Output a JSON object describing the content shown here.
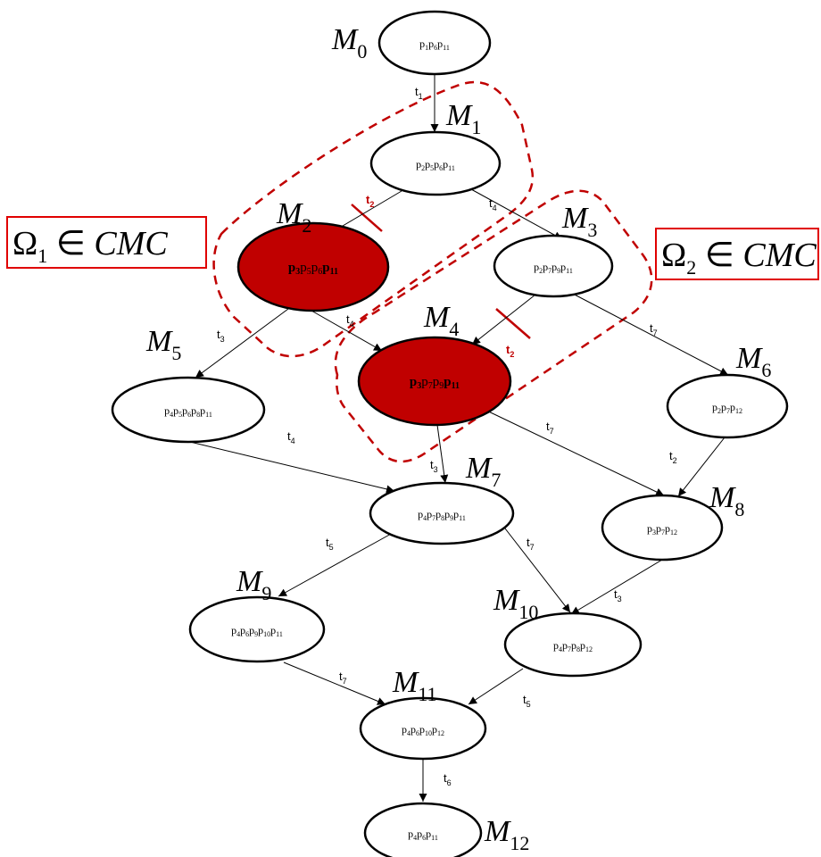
{
  "markings": [
    {
      "id": "M0",
      "label": "M",
      "sub": "0",
      "dead": false,
      "places": [
        [
          "p",
          "1"
        ],
        [
          "p",
          "6"
        ],
        [
          "p",
          "11"
        ]
      ]
    },
    {
      "id": "M1",
      "label": "M",
      "sub": "1",
      "dead": false,
      "places": [
        [
          "p",
          "2"
        ],
        [
          "p",
          "5"
        ],
        [
          "p",
          "6"
        ],
        [
          "p",
          "11"
        ]
      ]
    },
    {
      "id": "M2",
      "label": "M",
      "sub": "2",
      "dead": true,
      "places": [
        [
          "p",
          "3",
          true
        ],
        [
          "p",
          "5"
        ],
        [
          "p",
          "6"
        ],
        [
          "p",
          "11",
          true
        ]
      ]
    },
    {
      "id": "M3",
      "label": "M",
      "sub": "3",
      "dead": false,
      "places": [
        [
          "p",
          "2"
        ],
        [
          "p",
          "7"
        ],
        [
          "p",
          "9"
        ],
        [
          "p",
          "11"
        ]
      ]
    },
    {
      "id": "M4",
      "label": "M",
      "sub": "4",
      "dead": true,
      "places": [
        [
          "p",
          "3",
          true
        ],
        [
          "p",
          "7"
        ],
        [
          "p",
          "9"
        ],
        [
          "p",
          "11",
          true
        ]
      ]
    },
    {
      "id": "M5",
      "label": "M",
      "sub": "5",
      "dead": false,
      "places": [
        [
          "p",
          "4"
        ],
        [
          "p",
          "5"
        ],
        [
          "p",
          "6"
        ],
        [
          "p",
          "8"
        ],
        [
          "p",
          "11"
        ]
      ]
    },
    {
      "id": "M6",
      "label": "M",
      "sub": "6",
      "dead": false,
      "places": [
        [
          "p",
          "2"
        ],
        [
          "p",
          "7"
        ],
        [
          "p",
          "12"
        ]
      ]
    },
    {
      "id": "M7",
      "label": "M",
      "sub": "7",
      "dead": false,
      "places": [
        [
          "p",
          "4"
        ],
        [
          "p",
          "7"
        ],
        [
          "p",
          "8"
        ],
        [
          "p",
          "9"
        ],
        [
          "p",
          "11"
        ]
      ]
    },
    {
      "id": "M8",
      "label": "M",
      "sub": "8",
      "dead": false,
      "places": [
        [
          "p",
          "3"
        ],
        [
          "p",
          "7"
        ],
        [
          "p",
          "12"
        ]
      ]
    },
    {
      "id": "M9",
      "label": "M",
      "sub": "9",
      "dead": false,
      "places": [
        [
          "p",
          "4"
        ],
        [
          "p",
          "6"
        ],
        [
          "p",
          "9"
        ],
        [
          "p",
          "10"
        ],
        [
          "p",
          "11"
        ]
      ]
    },
    {
      "id": "M10",
      "label": "M",
      "sub": "10",
      "dead": false,
      "places": [
        [
          "p",
          "4"
        ],
        [
          "p",
          "7"
        ],
        [
          "p",
          "8"
        ],
        [
          "p",
          "12"
        ]
      ]
    },
    {
      "id": "M11",
      "label": "M",
      "sub": "11",
      "dead": false,
      "places": [
        [
          "p",
          "4"
        ],
        [
          "p",
          "6"
        ],
        [
          "p",
          "10"
        ],
        [
          "p",
          "12"
        ]
      ]
    },
    {
      "id": "M12",
      "label": "M",
      "sub": "12",
      "dead": false,
      "places": [
        [
          "p",
          "4"
        ],
        [
          "p",
          "6"
        ],
        [
          "p",
          "11"
        ]
      ]
    }
  ],
  "transitions": [
    {
      "from": "M0",
      "to": "M1",
      "label": "t",
      "sub": "1",
      "highlight": false
    },
    {
      "from": "M1",
      "to": "M2",
      "label": "t",
      "sub": "2",
      "highlight": true
    },
    {
      "from": "M1",
      "to": "M3",
      "label": "t",
      "sub": "4",
      "highlight": false
    },
    {
      "from": "M2",
      "to": "M5",
      "label": "t",
      "sub": "3",
      "highlight": false
    },
    {
      "from": "M2",
      "to": "M4",
      "label": "t",
      "sub": "4",
      "highlight": false
    },
    {
      "from": "M3",
      "to": "M4",
      "label": "t",
      "sub": "2",
      "highlight": true
    },
    {
      "from": "M3",
      "to": "M6",
      "label": "t",
      "sub": "7",
      "highlight": false
    },
    {
      "from": "M5",
      "to": "M7",
      "label": "t",
      "sub": "4",
      "highlight": false
    },
    {
      "from": "M4",
      "to": "M7",
      "label": "t",
      "sub": "3",
      "highlight": false
    },
    {
      "from": "M4",
      "to": "M8",
      "label": "t",
      "sub": "7",
      "highlight": false
    },
    {
      "from": "M6",
      "to": "M8",
      "label": "t",
      "sub": "2",
      "highlight": false
    },
    {
      "from": "M7",
      "to": "M9",
      "label": "t",
      "sub": "5",
      "highlight": false
    },
    {
      "from": "M7",
      "to": "M10",
      "label": "t",
      "sub": "7",
      "highlight": false
    },
    {
      "from": "M8",
      "to": "M10",
      "label": "t",
      "sub": "3",
      "highlight": false
    },
    {
      "from": "M9",
      "to": "M11",
      "label": "t",
      "sub": "7",
      "highlight": false
    },
    {
      "from": "M10",
      "to": "M11",
      "label": "t",
      "sub": "5",
      "highlight": false
    },
    {
      "from": "M11",
      "to": "M12",
      "label": "t",
      "sub": "6",
      "highlight": false
    }
  ],
  "regions": [
    {
      "id": "omega1",
      "omega": "Ω",
      "sub": "1",
      "member_of": "∈",
      "set": "CMC"
    },
    {
      "id": "omega2",
      "omega": "Ω",
      "sub": "2",
      "member_of": "∈",
      "set": "CMC"
    }
  ],
  "colors": {
    "dead_marking": "#c00000",
    "region": "#c00000",
    "box": "#e00000"
  }
}
